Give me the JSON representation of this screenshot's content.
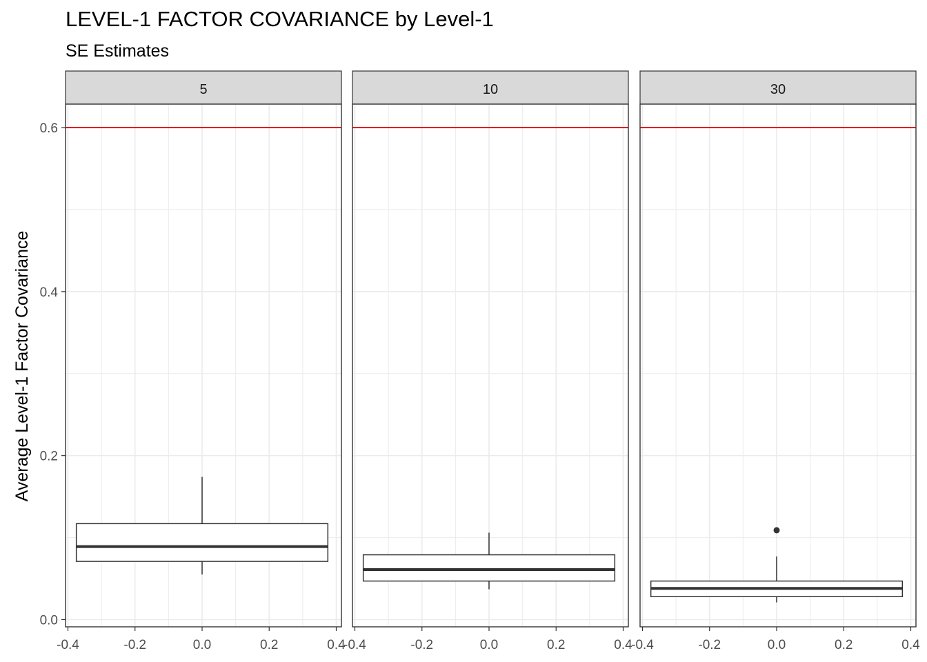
{
  "chart_data": {
    "type": "boxplot",
    "title": "LEVEL-1 FACTOR COVARIANCE by Level-1",
    "subtitle": "SE Estimates",
    "ylabel": "Average Level-1 Factor Covariance",
    "xlabel": "",
    "xlim": [
      -0.4,
      0.4
    ],
    "ylim": [
      0.0,
      0.6
    ],
    "x_ticks": [
      "-0.4",
      "-0.2",
      "0.0",
      "0.2",
      "0.4"
    ],
    "y_ticks": [
      "0.0",
      "0.2",
      "0.4",
      "0.6"
    ],
    "grid": true,
    "reference_line": {
      "y": 0.6,
      "color": "#e41a1c"
    },
    "panels": [
      {
        "label": "5",
        "box": {
          "min": 0.055,
          "q1": 0.071,
          "median": 0.089,
          "q3": 0.117,
          "max": 0.174
        },
        "outliers": []
      },
      {
        "label": "10",
        "box": {
          "min": 0.037,
          "q1": 0.047,
          "median": 0.061,
          "q3": 0.079,
          "max": 0.106
        },
        "outliers": []
      },
      {
        "label": "30",
        "box": {
          "min": 0.021,
          "q1": 0.028,
          "median": 0.038,
          "q3": 0.047,
          "max": 0.077
        },
        "outliers": [
          0.109
        ]
      }
    ]
  },
  "colors": {
    "strip_fill": "#d9d9d9",
    "grid": "#ebebeb",
    "axis_text": "#4d4d4d",
    "box_line": "#333333",
    "reference": "#e41a1c"
  }
}
